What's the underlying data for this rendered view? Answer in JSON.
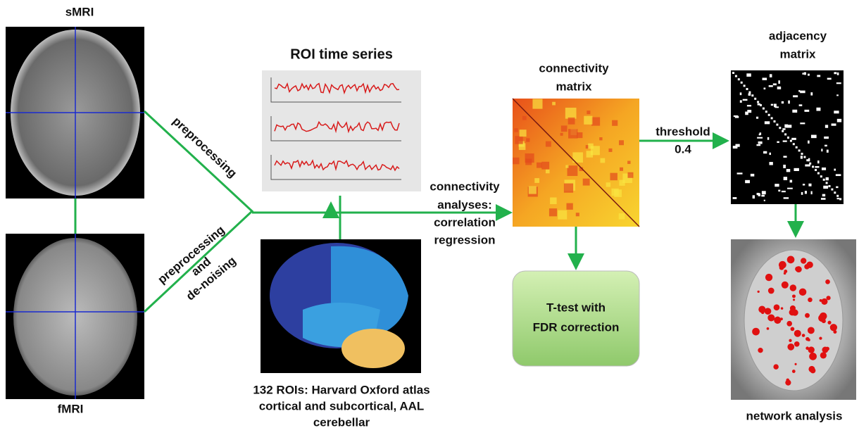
{
  "smri": {
    "label": "sMRI"
  },
  "fmri": {
    "label": "fMRI"
  },
  "edges": {
    "structural": {
      "label": "preprocessing"
    },
    "functional": {
      "lines": [
        "preprocessing",
        "and",
        "de-noising"
      ]
    },
    "analysis": {
      "lines": [
        "connectivity",
        "analyses:",
        "correlation",
        "regression"
      ]
    },
    "threshold": {
      "lines": [
        "threshold",
        "0.4"
      ]
    }
  },
  "time_series": {
    "title": "ROI time series"
  },
  "atlas": {
    "lines": [
      "132 ROIs: Harvard Oxford atlas",
      "cortical and subcortical, AAL",
      "cerebellar"
    ]
  },
  "connectivity_matrix": {
    "lines": [
      "connectivity",
      "matrix"
    ]
  },
  "adjacency_matrix": {
    "lines": [
      "adjacency",
      "matrix"
    ]
  },
  "statistics": {
    "lines": [
      "T-test with",
      "FDR correction"
    ]
  },
  "network": {
    "label": "network analysis"
  }
}
